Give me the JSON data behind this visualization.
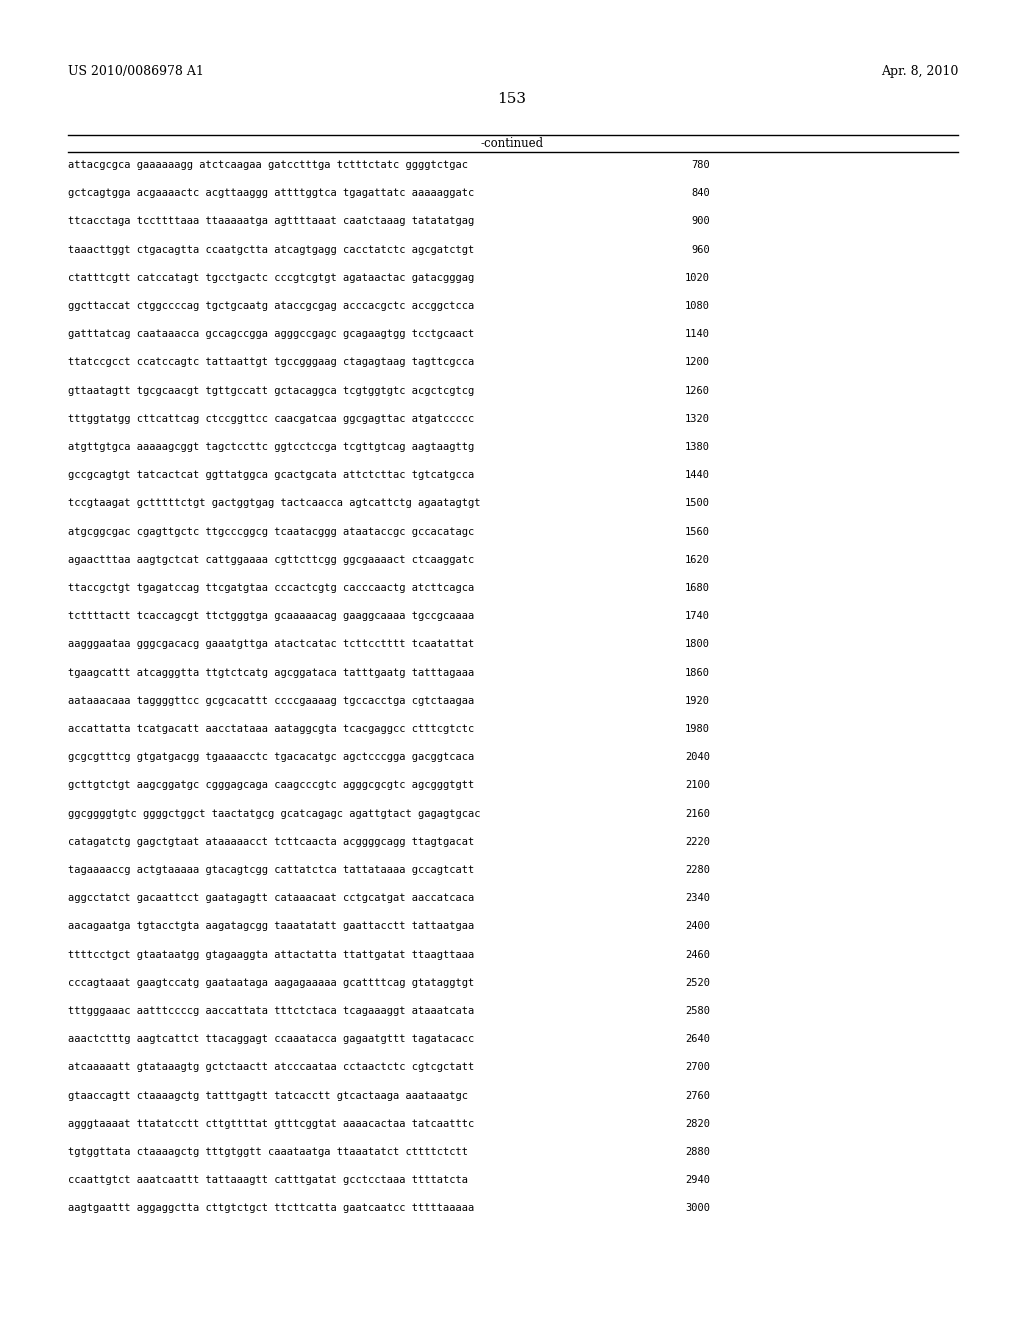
{
  "left_header": "US 2010/0086978 A1",
  "right_header": "Apr. 8, 2010",
  "page_number": "153",
  "continued_label": "-continued",
  "background_color": "#ffffff",
  "text_color": "#000000",
  "sequence_lines": [
    [
      "attacgcgca",
      "gaaaaaagg",
      "atctcaagaa",
      "gatcctttga",
      "tctttctatc",
      "ggggtctgac",
      "780"
    ],
    [
      "gctcagtgga",
      "acgaaaactc",
      "acgttaaggg",
      "attttggtca",
      "tgagattatc",
      "aaaaaggatc",
      "840"
    ],
    [
      "ttcacctaga",
      "tccttttaaa",
      "ttaaaaatga",
      "agttttaaat",
      "caatctaaag",
      "tatatatgag",
      "900"
    ],
    [
      "taaacttggt",
      "ctgacagtta",
      "ccaatgctta",
      "atcagtgagg",
      "cacctatctc",
      "agcgatctgt",
      "960"
    ],
    [
      "ctatttcgtt",
      "catccatagt",
      "tgcctgactc",
      "cccgtcgtgt",
      "agataactac",
      "gatacgggag",
      "1020"
    ],
    [
      "ggcttaccat",
      "ctggccccag",
      "tgctgcaatg",
      "ataccgcgag",
      "acccacgctc",
      "accggctcca",
      "1080"
    ],
    [
      "gatttatcag",
      "caataaacca",
      "gccagccgga",
      "agggccgagc",
      "gcagaagtgg",
      "tcctgcaact",
      "1140"
    ],
    [
      "ttatccgcct",
      "ccatccagtc",
      "tattaattgt",
      "tgccgggaag",
      "ctagagtaag",
      "tagttcgcca",
      "1200"
    ],
    [
      "gttaatagtt",
      "tgcgcaacgt",
      "tgttgccatt",
      "gctacaggca",
      "tcgtggtgtc",
      "acgctcgtcg",
      "1260"
    ],
    [
      "tttggtatgg",
      "cttcattcag",
      "ctccggttcc",
      "caacgatcaa",
      "ggcgagttac",
      "atgatccccc",
      "1320"
    ],
    [
      "atgttgtgca",
      "aaaaagcggt",
      "tagctccttc",
      "ggtcctccga",
      "tcgttgtcag",
      "aagtaagttg",
      "1380"
    ],
    [
      "gccgcagtgt",
      "tatcactcat",
      "ggttatggca",
      "gcactgcata",
      "attctcttac",
      "tgtcatgcca",
      "1440"
    ],
    [
      "tccgtaagat",
      "gctttttctgt",
      "gactggtgag",
      "tactcaacca",
      "agtcattctg",
      "agaatagtgt",
      "1500"
    ],
    [
      "atgcggcgac",
      "cgagttgctc",
      "ttgcccggcg",
      "tcaatacggg",
      "ataataccgc",
      "gccacatagc",
      "1560"
    ],
    [
      "agaactttaa",
      "aagtgctcat",
      "cattggaaaa",
      "cgttcttcgg",
      "ggcgaaaact",
      "ctcaaggatc",
      "1620"
    ],
    [
      "ttaccgctgt",
      "tgagatccag",
      "ttcgatgtaa",
      "cccactcgtg",
      "cacccaactg",
      "atcttcagca",
      "1680"
    ],
    [
      "tcttttactt",
      "tcaccagcgt",
      "ttctgggtga",
      "gcaaaaacag",
      "gaaggcaaaa",
      "tgccgcaaaa",
      "1740"
    ],
    [
      "aagggaataa",
      "gggcgacacg",
      "gaaatgttga",
      "atactcatac",
      "tcttcctttt",
      "tcaatattat",
      "1800"
    ],
    [
      "tgaagcattt",
      "atcagggtta",
      "ttgtctcatg",
      "agcggataca",
      "tatttgaatg",
      "tatttagaaa",
      "1860"
    ],
    [
      "aataaacaaa",
      "taggggttcc",
      "gcgcacattt",
      "ccccgaaaag",
      "tgccacctga",
      "cgtctaagaa",
      "1920"
    ],
    [
      "accattatta",
      "tcatgacatt",
      "aacctataaa",
      "aataggcgta",
      "tcacgaggcc",
      "ctttcgtctc",
      "1980"
    ],
    [
      "gcgcgtttcg",
      "gtgatgacgg",
      "tgaaaacctc",
      "tgacacatgc",
      "agctcccgga",
      "gacggtcaca",
      "2040"
    ],
    [
      "gcttgtctgt",
      "aagcggatgc",
      "cgggagcaga",
      "caagcccgtc",
      "agggcgcgtc",
      "agcgggtgtt",
      "2100"
    ],
    [
      "ggcggggtgtc",
      "ggggctggct",
      "taactatgcg",
      "gcatcagagc",
      "agattgtact",
      "gagagtgcac",
      "2160"
    ],
    [
      "catagatctg",
      "gagctgtaat",
      "ataaaaacct",
      "tcttcaacta",
      "acggggcagg",
      "ttagtgacat",
      "2220"
    ],
    [
      "tagaaaaccg",
      "actgtaaaaa",
      "gtacagtcgg",
      "cattatctca",
      "tattataaaa",
      "gccagtcatt",
      "2280"
    ],
    [
      "aggcctatct",
      "gacaattcct",
      "gaatagagtt",
      "cataaacaat",
      "cctgcatgat",
      "aaccatcaca",
      "2340"
    ],
    [
      "aacagaatga",
      "tgtacctgta",
      "aagatagcgg",
      "taaatatatt",
      "gaattacctt",
      "tattaatgaa",
      "2400"
    ],
    [
      "ttttcctgct",
      "gtaataatgg",
      "gtagaaggta",
      "attactatta",
      "ttattgatat",
      "ttaagttaaa",
      "2460"
    ],
    [
      "cccagtaaat",
      "gaagtccatg",
      "gaataataga",
      "aagagaaaaa",
      "gcattttcag",
      "gtataggtgt",
      "2520"
    ],
    [
      "tttgggaaac",
      "aatttccccg",
      "aaccattata",
      "tttctctaca",
      "tcagaaaggt",
      "ataaatcata",
      "2580"
    ],
    [
      "aaactctttg",
      "aagtcattct",
      "ttacaggagt",
      "ccaaatacca",
      "gagaatgttt",
      "tagatacacc",
      "2640"
    ],
    [
      "atcaaaaatt",
      "gtataaagtg",
      "gctctaactt",
      "atcccaataa",
      "cctaactctc",
      "cgtcgctatt",
      "2700"
    ],
    [
      "gtaaccagtt",
      "ctaaaagctg",
      "tatttgagtt",
      "tatcacctt",
      "gtcactaaga",
      "aaataaatgc",
      "2760"
    ],
    [
      "agggtaaaat",
      "ttatatcctt",
      "cttgttttat",
      "gtttcggtat",
      "aaaacactaa",
      "tatcaatttc",
      "2820"
    ],
    [
      "tgtggttata",
      "ctaaaagctg",
      "tttgtggtt",
      "caaataatga",
      "ttaaatatct",
      "cttttctctt",
      "2880"
    ],
    [
      "ccaattgtct",
      "aaatcaattt",
      "tattaaagtt",
      "catttgatat",
      "gcctcctaaa",
      "ttttatcta",
      "2940"
    ],
    [
      "aagtgaattt",
      "aggaggctta",
      "cttgtctgct",
      "ttcttcatta",
      "gaatcaatcc",
      "tttttaaaaa",
      "3000"
    ]
  ]
}
